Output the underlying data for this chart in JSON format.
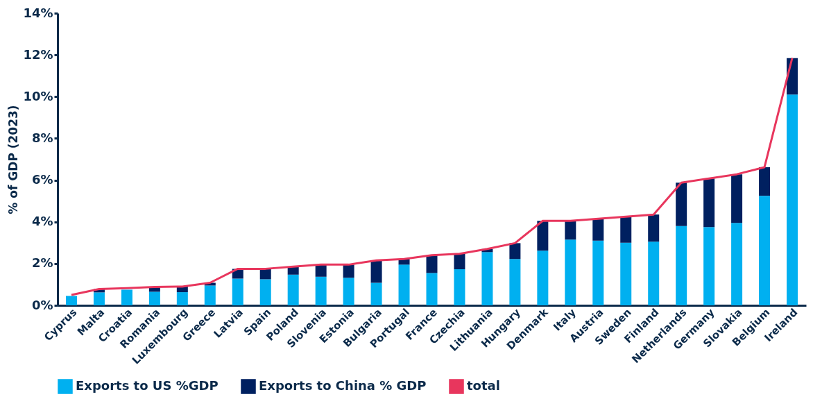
{
  "chart_data": {
    "type": "bar",
    "stacked": true,
    "ylabel": "% of GDP (2023)",
    "categories": [
      "Cyprus",
      "Malta",
      "Croatia",
      "Romania",
      "Luxembourg",
      "Greece",
      "Latvia",
      "Spain",
      "Poland",
      "Slovenia",
      "Estonia",
      "Bulgaria",
      "Portugal",
      "France",
      "Czechia",
      "Lithuania",
      "Hungary",
      "Denmark",
      "Italy",
      "Austria",
      "Sweden",
      "Finland",
      "Netherlands",
      "Germany",
      "Slovakia",
      "Belgium",
      "Ireland"
    ],
    "series": [
      {
        "name": "Exports to US %GDP",
        "color": "#00b0f0",
        "values": [
          0.45,
          0.62,
          0.75,
          0.65,
          0.63,
          0.95,
          1.28,
          1.25,
          1.47,
          1.37,
          1.32,
          1.08,
          1.95,
          1.55,
          1.73,
          2.55,
          2.22,
          2.62,
          3.15,
          3.1,
          3.0,
          3.05,
          3.8,
          3.75,
          3.95,
          5.25,
          10.1
        ]
      },
      {
        "name": "Exports to China % GDP",
        "color": "#002060",
        "values": [
          null,
          0.16,
          null,
          0.23,
          0.27,
          0.13,
          0.47,
          0.5,
          0.38,
          0.58,
          0.63,
          1.07,
          0.27,
          0.85,
          0.74,
          0.15,
          0.76,
          1.43,
          0.9,
          1.05,
          1.25,
          1.3,
          2.08,
          2.33,
          2.33,
          1.37,
          1.75
        ]
      },
      {
        "name": "total",
        "type": "line",
        "color": "#e8365d",
        "values": [
          0.5,
          0.78,
          0.82,
          0.88,
          0.9,
          1.08,
          1.75,
          1.75,
          1.85,
          1.95,
          1.95,
          2.15,
          2.22,
          2.4,
          2.47,
          2.7,
          2.98,
          4.05,
          4.05,
          4.15,
          4.25,
          4.35,
          5.88,
          6.08,
          6.28,
          6.62,
          11.85
        ]
      }
    ],
    "ylim": [
      0,
      14
    ],
    "yticks": [
      {
        "value": 0,
        "label": "0%"
      },
      {
        "value": 2,
        "label": "2%"
      },
      {
        "value": 4,
        "label": "4%"
      },
      {
        "value": 6,
        "label": "6%"
      },
      {
        "value": 8,
        "label": "8%"
      },
      {
        "value": 10,
        "label": "10%"
      },
      {
        "value": 12,
        "label": "12%"
      },
      {
        "value": 14,
        "label": "14%"
      }
    ],
    "grid": false,
    "legend": "bottom",
    "marker": "none",
    "line_style": "solid"
  }
}
